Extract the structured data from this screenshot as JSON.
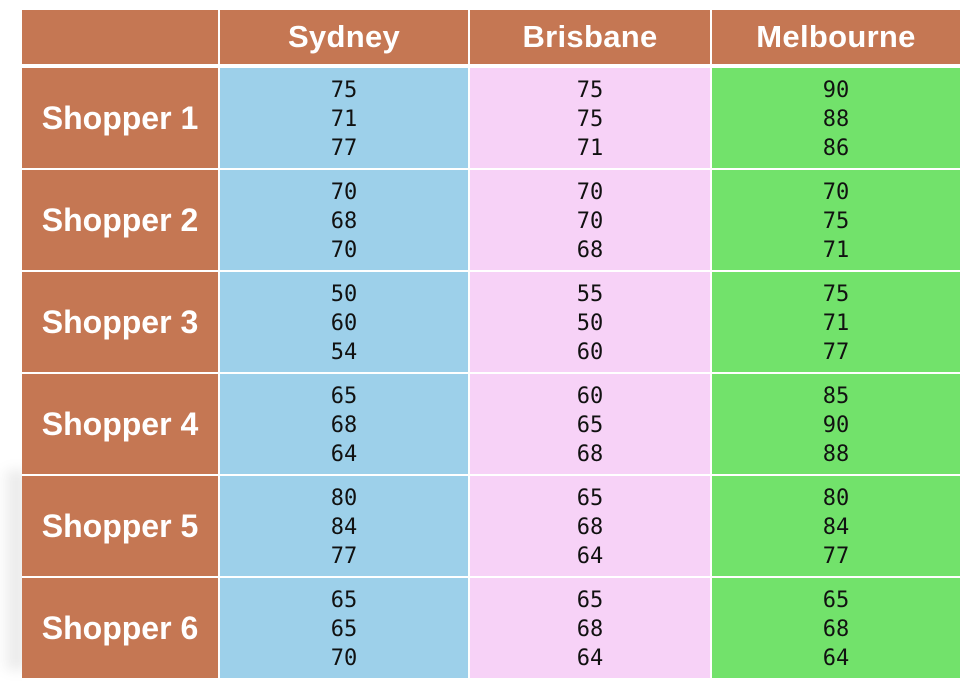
{
  "table": {
    "corner": "",
    "columns": [
      "Sydney",
      "Brisbane",
      "Melbourne"
    ],
    "rows": [
      {
        "label": "Shopper 1",
        "sydney": [
          "75",
          "71",
          "77"
        ],
        "brisbane": [
          "75",
          "75",
          "71"
        ],
        "melbourne": [
          "90",
          "88",
          "86"
        ]
      },
      {
        "label": "Shopper 2",
        "sydney": [
          "70",
          "68",
          "70"
        ],
        "brisbane": [
          "70",
          "70",
          "68"
        ],
        "melbourne": [
          "70",
          "75",
          "71"
        ]
      },
      {
        "label": "Shopper 3",
        "sydney": [
          "50",
          "60",
          "54"
        ],
        "brisbane": [
          "55",
          "50",
          "60"
        ],
        "melbourne": [
          "75",
          "71",
          "77"
        ]
      },
      {
        "label": "Shopper 4",
        "sydney": [
          "65",
          "68",
          "64"
        ],
        "brisbane": [
          "60",
          "65",
          "68"
        ],
        "melbourne": [
          "85",
          "90",
          "88"
        ]
      },
      {
        "label": "Shopper 5",
        "sydney": [
          "80",
          "84",
          "77"
        ],
        "brisbane": [
          "65",
          "68",
          "64"
        ],
        "melbourne": [
          "80",
          "84",
          "77"
        ]
      },
      {
        "label": "Shopper 6",
        "sydney": [
          "65",
          "65",
          "70"
        ],
        "brisbane": [
          "65",
          "68",
          "64"
        ],
        "melbourne": [
          "65",
          "68",
          "64"
        ]
      }
    ]
  },
  "colors": {
    "header": "#c57753",
    "sydney": "#9dd0ea",
    "brisbane": "#f7d2f7",
    "melbourne": "#72e26b"
  }
}
